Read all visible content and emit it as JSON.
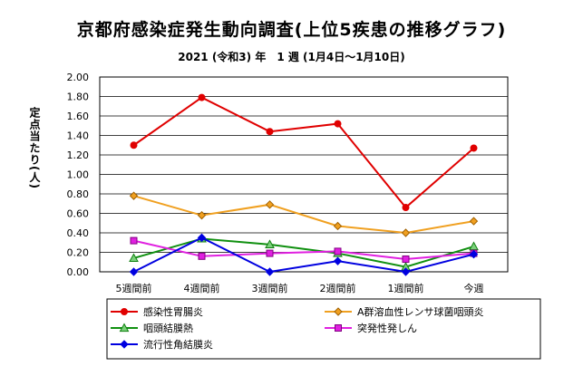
{
  "chart_data": {
    "type": "line",
    "title": "京都府感染症発生動向調査(上位5疾患の推移グラフ)",
    "subtitle": "2021 (令和3) 年　1 週 (1月4日～1月10日)",
    "ylabel": "定点当たり(人)",
    "xlabel": "",
    "categories": [
      "5週間前",
      "4週間前",
      "3週間前",
      "2週間前",
      "1週間前",
      "今週"
    ],
    "ylim": [
      0,
      2.0
    ],
    "yticks": [
      "0.00",
      "0.20",
      "0.40",
      "0.60",
      "0.80",
      "1.00",
      "1.20",
      "1.40",
      "1.60",
      "1.80",
      "2.00"
    ],
    "grid": true,
    "legend_position": "bottom",
    "series": [
      {
        "name": "感染性胃腸炎",
        "color": "#e00000",
        "marker": "circle",
        "values": [
          1.3,
          1.79,
          1.44,
          1.52,
          0.66,
          1.27
        ]
      },
      {
        "name": "A群溶血性レンサ球菌咽頭炎",
        "color": "#f0a020",
        "marker": "diamond",
        "values": [
          0.78,
          0.58,
          0.69,
          0.47,
          0.4,
          0.52
        ]
      },
      {
        "name": "咽頭結膜熱",
        "color": "#109010",
        "marker": "triangle",
        "values": [
          0.14,
          0.34,
          0.28,
          0.19,
          0.05,
          0.26
        ]
      },
      {
        "name": "突発性発しん",
        "color": "#e020e0",
        "marker": "square",
        "values": [
          0.32,
          0.16,
          0.19,
          0.21,
          0.13,
          0.19
        ]
      },
      {
        "name": "流行性角結膜炎",
        "color": "#0000e0",
        "marker": "diamond",
        "values": [
          0.0,
          0.35,
          0.0,
          0.11,
          0.0,
          0.18
        ]
      }
    ]
  }
}
